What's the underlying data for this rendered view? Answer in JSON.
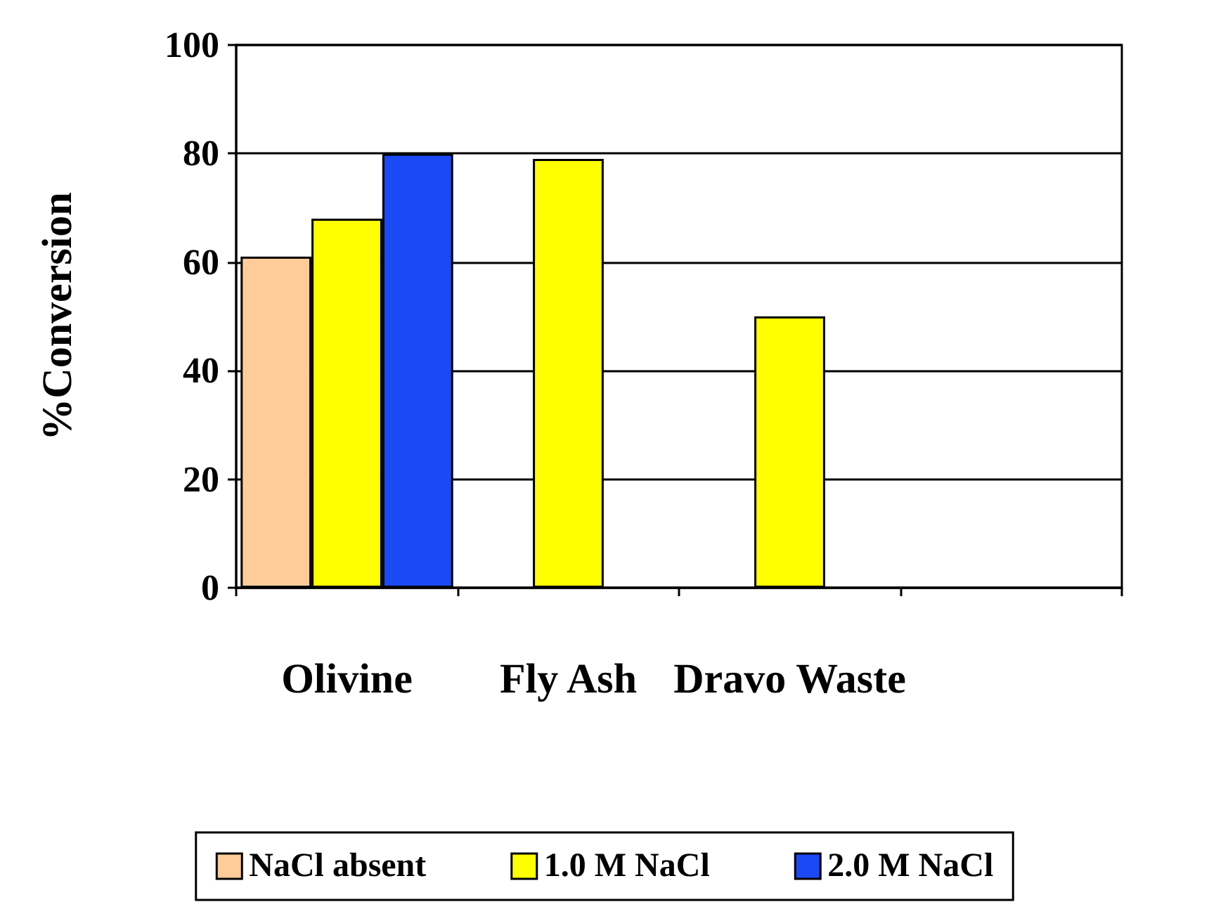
{
  "chart_data": {
    "type": "bar",
    "ylabel": "%Conversion",
    "categories": [
      "Olivine",
      "Fly Ash",
      "Dravo Waste",
      null
    ],
    "series": [
      {
        "name": "NaCl absent",
        "color": "#ffcc99",
        "values": [
          61,
          null,
          null,
          null
        ]
      },
      {
        "name": "1.0 M NaCl",
        "color": "#ffff00",
        "values": [
          68,
          79,
          50,
          null
        ]
      },
      {
        "name": "2.0 M NaCl",
        "color": "#1a49f5",
        "values": [
          80,
          null,
          null,
          null
        ]
      }
    ],
    "ylim": [
      0,
      100
    ],
    "yticks": [
      0,
      20,
      40,
      60,
      80,
      100
    ],
    "grid": "y",
    "legend": "bottom"
  }
}
